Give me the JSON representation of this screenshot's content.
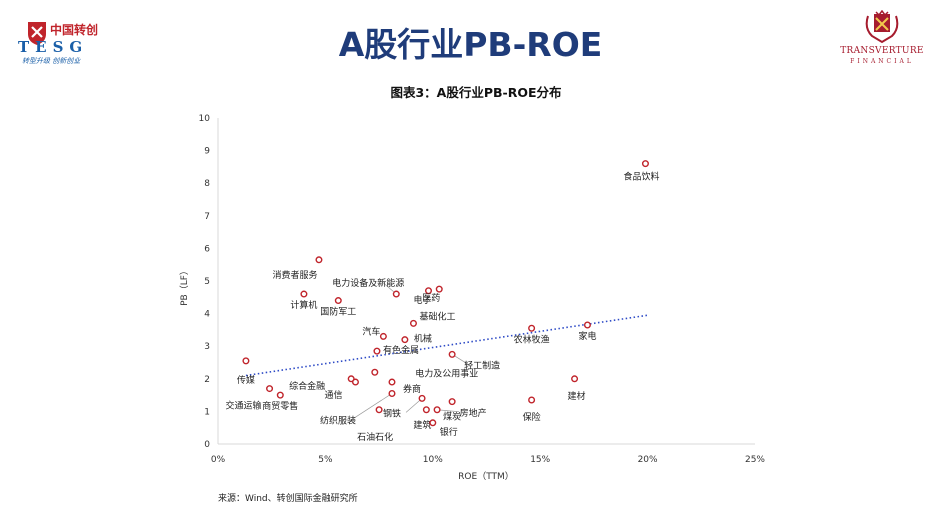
{
  "header": {
    "left_logo_cn": "中国转创",
    "left_logo_tesg": "TESG",
    "left_logo_slogan": "转型升级 创新创业",
    "right_logo_name": "TRANSVERTURE",
    "right_logo_sub": "FINANCIAL",
    "page_title": "A股行业PB-ROE"
  },
  "source_note": "来源：Wind、转创国际金融研究所",
  "colors": {
    "title": "#1f3c7a",
    "marker": "#c0242b",
    "trendline": "#2e4bc6",
    "axis": "#d9d9d9",
    "logo_red": "#a61c2e",
    "logo_blue": "#1a5fa8"
  },
  "chart_data": {
    "type": "scatter",
    "title": "图表3：A股行业PB-ROE分布",
    "xlabel": "ROE（TTM）",
    "ylabel": "PB（LF）",
    "xlim": [
      0,
      0.25
    ],
    "ylim": [
      0,
      10
    ],
    "x_ticks": [
      "0%",
      "5%",
      "10%",
      "15%",
      "20%",
      "25%"
    ],
    "y_ticks": [
      "0",
      "1",
      "2",
      "3",
      "4",
      "5",
      "6",
      "7",
      "8",
      "9",
      "10"
    ],
    "grid": false,
    "trendline": {
      "style": "dotted",
      "x": [
        0.013,
        0.2
      ],
      "y": [
        2.1,
        3.95
      ]
    },
    "points": [
      {
        "label": "食品饮料",
        "x": 0.199,
        "y": 8.6
      },
      {
        "label": "消费者服务",
        "x": 0.047,
        "y": 5.65
      },
      {
        "label": "电力设备及新能源",
        "x": 0.083,
        "y": 4.6
      },
      {
        "label": "计算机",
        "x": 0.04,
        "y": 4.6
      },
      {
        "label": "国防军工",
        "x": 0.056,
        "y": 4.4
      },
      {
        "label": "电子",
        "x": 0.098,
        "y": 4.7
      },
      {
        "label": "医药",
        "x": 0.103,
        "y": 4.75
      },
      {
        "label": "基础化工",
        "x": 0.091,
        "y": 3.7
      },
      {
        "label": "汽车",
        "x": 0.077,
        "y": 3.3
      },
      {
        "label": "有色金属",
        "x": 0.074,
        "y": 2.85
      },
      {
        "label": "机械",
        "x": 0.087,
        "y": 3.2
      },
      {
        "label": "轻工制造",
        "x": 0.109,
        "y": 2.75
      },
      {
        "label": "农林牧渔",
        "x": 0.146,
        "y": 3.55
      },
      {
        "label": "家电",
        "x": 0.172,
        "y": 3.65
      },
      {
        "label": "传媒",
        "x": 0.013,
        "y": 2.55
      },
      {
        "label": "电力及公用事业",
        "x": 0.073,
        "y": 2.2
      },
      {
        "label": "综合金融",
        "x": 0.062,
        "y": 2.0
      },
      {
        "label": "通信",
        "x": 0.064,
        "y": 1.9
      },
      {
        "label": "券商",
        "x": 0.081,
        "y": 1.9
      },
      {
        "label": "纺织服装",
        "x": 0.081,
        "y": 1.55
      },
      {
        "label": "交通运输",
        "x": 0.024,
        "y": 1.7
      },
      {
        "label": "商贸零售",
        "x": 0.029,
        "y": 1.5
      },
      {
        "label": "建材",
        "x": 0.166,
        "y": 2.0
      },
      {
        "label": "钢铁",
        "x": 0.095,
        "y": 1.4
      },
      {
        "label": "煤炭",
        "x": 0.109,
        "y": 1.3
      },
      {
        "label": "房地产",
        "x": 0.102,
        "y": 1.05
      },
      {
        "label": "建筑",
        "x": 0.097,
        "y": 1.05
      },
      {
        "label": "石油石化",
        "x": 0.075,
        "y": 1.05
      },
      {
        "label": "保险",
        "x": 0.146,
        "y": 1.35
      },
      {
        "label": "银行",
        "x": 0.1,
        "y": 0.65
      }
    ]
  }
}
